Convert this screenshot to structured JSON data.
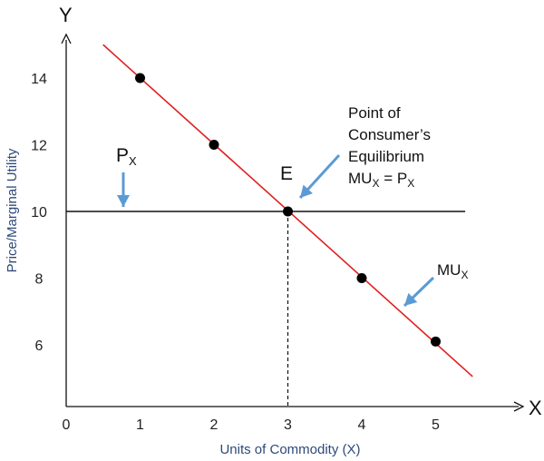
{
  "chart_data": {
    "type": "line",
    "xlabel": "Units of Commodity (X)",
    "ylabel": "Price/Marginal Utility",
    "x_axis_end_label": "X",
    "y_axis_end_label": "Y",
    "x_ticks": [
      0,
      1,
      2,
      3,
      4,
      5
    ],
    "y_ticks": [
      6,
      8,
      10,
      12,
      14
    ],
    "series": [
      {
        "name": "MUX",
        "type": "line",
        "color": "#e02020",
        "line_start": [
          0.5,
          15.0
        ],
        "line_end": [
          5.5,
          5.05
        ],
        "points": [
          {
            "x": 1,
            "y": 14
          },
          {
            "x": 2,
            "y": 12
          },
          {
            "x": 3,
            "y": 10
          },
          {
            "x": 4,
            "y": 8
          },
          {
            "x": 5,
            "y": 6.1
          }
        ]
      },
      {
        "name": "PX",
        "type": "hline",
        "color": "#111111",
        "y": 10,
        "x_range": [
          0,
          5.4
        ]
      }
    ],
    "equilibrium": {
      "x": 3,
      "y": 10,
      "label": "E"
    },
    "annotations": {
      "px_label": {
        "main": "P",
        "sub": "X"
      },
      "mux_label": {
        "main": "MU",
        "sub": "X"
      },
      "equilibrium_text": {
        "line1": "Point of",
        "line2": "Consumer’s",
        "line3": "Equilibrium",
        "eq_mu": "MU",
        "eq_sub1": "X",
        "eq_mid": " = P",
        "eq_sub2": "X"
      }
    },
    "colors": {
      "curve": "#e02020",
      "arrow": "#5b9bd5",
      "axis": "#111111",
      "axis_label": "#2e4a7a"
    }
  }
}
